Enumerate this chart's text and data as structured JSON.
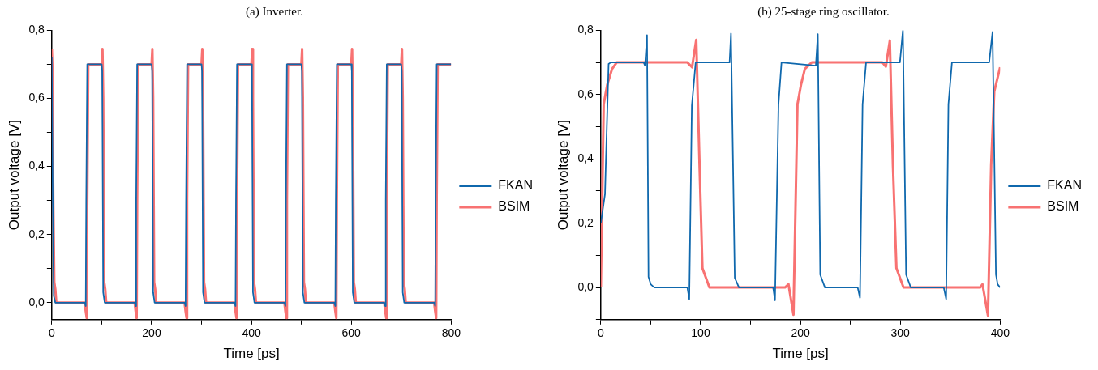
{
  "chart_data": [
    {
      "type": "line",
      "title": "(a) Inverter.",
      "xlabel": "Time [ps]",
      "ylabel": "Output voltage [V]",
      "xlim": [
        0,
        800
      ],
      "ylim": [
        -0.05,
        0.8
      ],
      "xticks": [
        0,
        {
          "value": 100,
          "label": null
        },
        200,
        {
          "value": 300,
          "label": null
        },
        400,
        {
          "value": 500,
          "label": null
        },
        600,
        {
          "value": 700,
          "label": null
        },
        800
      ],
      "yticks": [
        {
          "value": 0,
          "label": "0,0"
        },
        {
          "value": 0.1,
          "label": null
        },
        {
          "value": 0.2,
          "label": "0,2"
        },
        {
          "value": 0.3,
          "label": null
        },
        {
          "value": 0.4,
          "label": "0,4"
        },
        {
          "value": 0.5,
          "label": null
        },
        {
          "value": 0.6,
          "label": "0,6"
        },
        {
          "value": 0.7,
          "label": null
        },
        {
          "value": 0.8,
          "label": "0,8"
        }
      ],
      "grid": false,
      "legend": "right",
      "marker": "none",
      "line_style": "solid",
      "series": [
        {
          "name": "FKAN",
          "color": "#0f68ad",
          "x": [
            0,
            2,
            4,
            7,
            66,
            68,
            69,
            71,
            100,
            101,
            103,
            106,
            166,
            168,
            169,
            171,
            200,
            201,
            203,
            206,
            266,
            268,
            269,
            271,
            300,
            301,
            303,
            306,
            366,
            368,
            369,
            371,
            400,
            401,
            403,
            406,
            466,
            468,
            469,
            471,
            500,
            501,
            503,
            506,
            566,
            568,
            569,
            571,
            600,
            601,
            603,
            606,
            666,
            668,
            669,
            671,
            700,
            701,
            703,
            706,
            766,
            768,
            769,
            771,
            800
          ],
          "values": [
            0.72,
            0.3,
            0.02,
            0,
            0,
            -0.01,
            0.3,
            0.7,
            0.7,
            0.68,
            0.03,
            0,
            0,
            -0.01,
            0.3,
            0.7,
            0.7,
            0.68,
            0.03,
            0,
            0,
            -0.01,
            0.3,
            0.7,
            0.7,
            0.68,
            0.03,
            0,
            0,
            -0.01,
            0.3,
            0.7,
            0.7,
            0.68,
            0.03,
            0,
            0,
            -0.01,
            0.3,
            0.7,
            0.7,
            0.68,
            0.03,
            0,
            0,
            -0.01,
            0.3,
            0.7,
            0.7,
            0.68,
            0.03,
            0,
            0,
            -0.01,
            0.3,
            0.7,
            0.7,
            0.68,
            0.03,
            0,
            0,
            -0.01,
            0.3,
            0.7,
            0.7
          ]
        },
        {
          "name": "BSIM",
          "color": "#f87272",
          "x": [
            0,
            1,
            3,
            5,
            7,
            9,
            66,
            68,
            70,
            71,
            73,
            100,
            101.5,
            103,
            105,
            107,
            109,
            166,
            168,
            170,
            171,
            173,
            200,
            201.5,
            203,
            205,
            207,
            209,
            266,
            268,
            270,
            271,
            273,
            300,
            301.5,
            303,
            305,
            307,
            309,
            366,
            368,
            370,
            371,
            373,
            400,
            401.5,
            403,
            405,
            407,
            409,
            466,
            468,
            470,
            471,
            473,
            500,
            501.5,
            503,
            505,
            507,
            509,
            566,
            568,
            570,
            571,
            573,
            600,
            601.5,
            603,
            605,
            607,
            609,
            666,
            668,
            670,
            671,
            673,
            700,
            701.5,
            703,
            705,
            707,
            709,
            766,
            768,
            770,
            771,
            773,
            800
          ],
          "values": [
            0.745,
            0.7,
            0.3,
            0.06,
            0.04,
            0,
            0,
            -0.025,
            -0.045,
            0.3,
            0.7,
            0.7,
            0.745,
            0.6,
            0.06,
            0.04,
            0,
            0,
            -0.025,
            -0.045,
            0.3,
            0.7,
            0.7,
            0.745,
            0.6,
            0.06,
            0.04,
            0,
            0,
            -0.025,
            -0.045,
            0.3,
            0.7,
            0.7,
            0.745,
            0.6,
            0.06,
            0.04,
            0,
            0,
            -0.025,
            -0.045,
            0.3,
            0.7,
            0.7,
            0.745,
            0.6,
            0.06,
            0.04,
            0,
            0,
            -0.025,
            -0.045,
            0.3,
            0.7,
            0.7,
            0.745,
            0.6,
            0.06,
            0.04,
            0,
            0,
            -0.025,
            -0.045,
            0.3,
            0.7,
            0.7,
            0.745,
            0.6,
            0.06,
            0.04,
            0,
            0,
            -0.025,
            -0.045,
            0.3,
            0.7,
            0.7,
            0.745,
            0.6,
            0.06,
            0.04,
            0,
            0,
            -0.025,
            -0.045,
            0.3,
            0.7,
            0.7
          ]
        }
      ]
    },
    {
      "type": "line",
      "title": "(b) 25-stage ring oscillator.",
      "xlabel": "Time [ps]",
      "ylabel": "Output voltage [V]",
      "xlim": [
        0,
        400
      ],
      "ylim": [
        -0.1,
        0.8
      ],
      "xticks": [
        0,
        {
          "value": 50,
          "label": null
        },
        100,
        {
          "value": 150,
          "label": null
        },
        200,
        {
          "value": 250,
          "label": null
        },
        300,
        {
          "value": 350,
          "label": null
        },
        400
      ],
      "yticks": [
        {
          "value": -0.1,
          "label": null
        },
        {
          "value": 0,
          "label": "0,0"
        },
        {
          "value": 0.1,
          "label": null
        },
        {
          "value": 0.2,
          "label": "0,2"
        },
        {
          "value": 0.3,
          "label": null
        },
        {
          "value": 0.4,
          "label": "0,4"
        },
        {
          "value": 0.5,
          "label": null
        },
        {
          "value": 0.6,
          "label": "0,6"
        },
        {
          "value": 0.7,
          "label": null
        },
        {
          "value": 0.8,
          "label": "0,8"
        }
      ],
      "grid": false,
      "legend": "right",
      "marker": "none",
      "line_style": "solid",
      "series": [
        {
          "name": "FKAN",
          "color": "#0f68ad",
          "x": [
            0,
            4.2,
            7.8,
            10,
            43,
            44.3,
            46.3,
            47.8,
            50,
            53.7,
            86.7,
            88.6,
            91.2,
            95,
            129,
            130.4,
            134.2,
            138.4,
            172.6,
            174.5,
            178,
            181,
            215.4,
            217.4,
            219.8,
            224.5,
            257.3,
            259.6,
            262.2,
            265.7,
            299.6,
            302.6,
            305.8,
            310.5,
            343.5,
            345.9,
            348.2,
            351.7,
            389,
            392.4,
            395.8,
            397.5,
            400
          ],
          "values": [
            0.2,
            0.29,
            0.695,
            0.7,
            0.7,
            0.69,
            0.785,
            0.033,
            0.01,
            0,
            0,
            -0.036,
            0.566,
            0.7,
            0.7,
            0.79,
            0.03,
            0,
            0,
            -0.04,
            0.57,
            0.7,
            0.69,
            0.788,
            0.04,
            0,
            0,
            -0.032,
            0.57,
            0.7,
            0.7,
            0.8,
            0.04,
            0,
            0,
            -0.036,
            0.57,
            0.7,
            0.7,
            0.795,
            0.04,
            0.01,
            0
          ]
        },
        {
          "name": "BSIM",
          "color": "#f87272",
          "x": [
            0,
            2.9,
            6.4,
            11.3,
            15.9,
            86.7,
            91.4,
            95.6,
            98.9,
            101.8,
            108.8,
            184.5,
            188,
            193,
            197,
            200.5,
            204.4,
            211.3,
            282,
            285.5,
            289.5,
            292.6,
            296.1,
            303.2,
            379.9,
            382.3,
            387.8,
            391,
            394.1,
            400
          ],
          "values": [
            0,
            0.57,
            0.63,
            0.68,
            0.7,
            0.7,
            0.685,
            0.77,
            0.38,
            0.06,
            0,
            0,
            0.01,
            -0.085,
            0.57,
            0.63,
            0.68,
            0.7,
            0.7,
            0.687,
            0.768,
            0.38,
            0.06,
            0,
            0,
            0.01,
            -0.087,
            0.38,
            0.61,
            0.685
          ]
        }
      ]
    }
  ]
}
